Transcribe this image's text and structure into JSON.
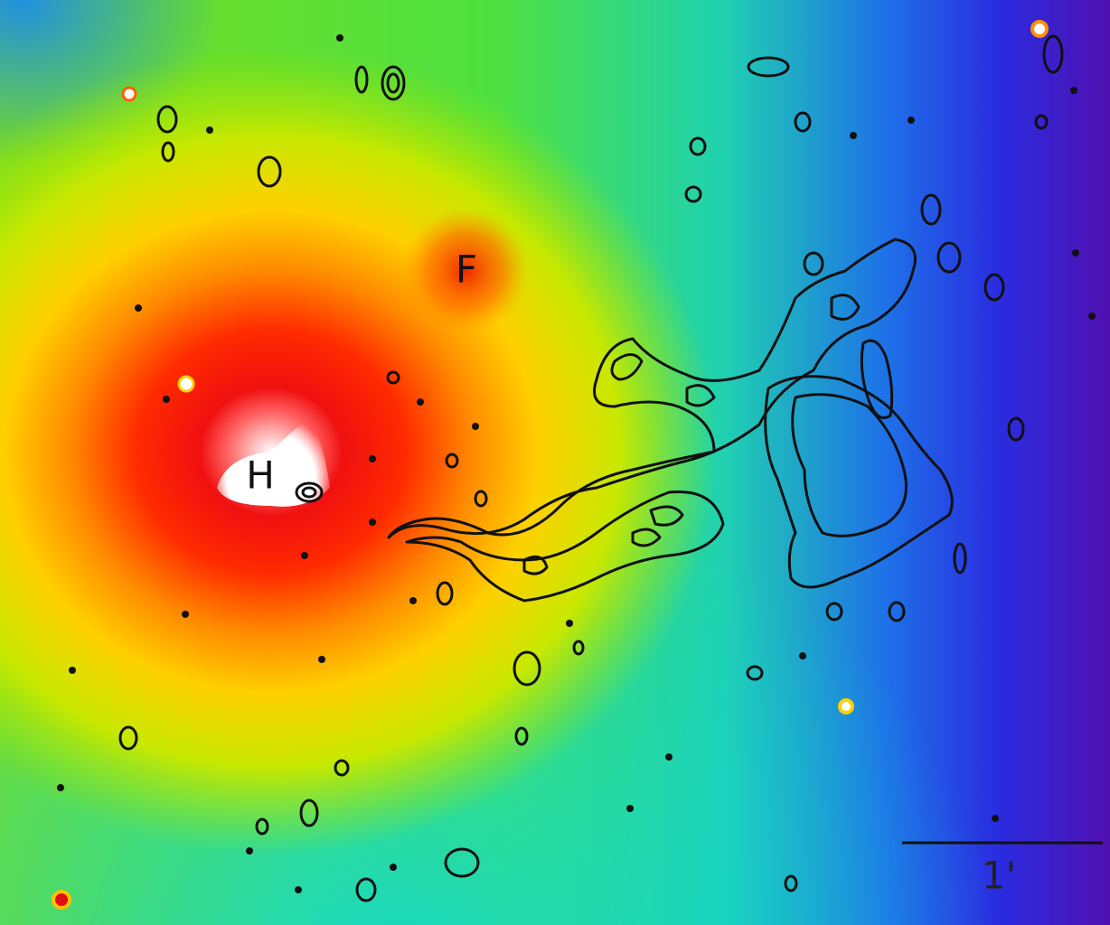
{
  "labels": {
    "f": "F",
    "h": "H"
  },
  "scale_bar": {
    "label": "1'"
  }
}
